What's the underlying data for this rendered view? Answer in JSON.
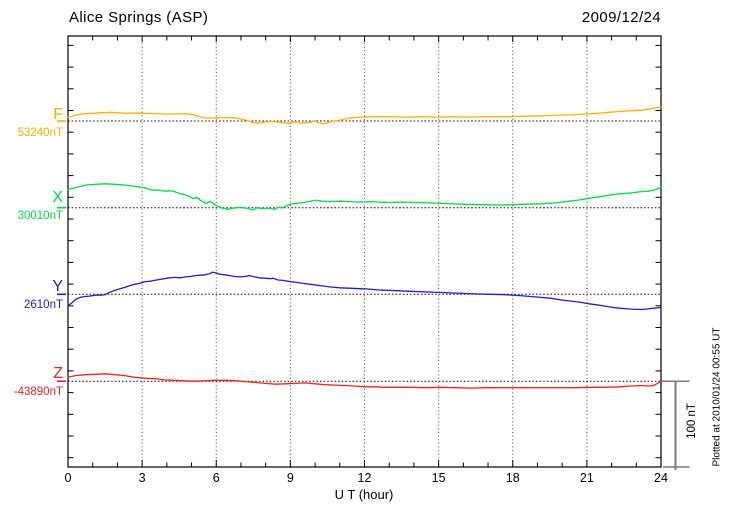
{
  "header": {
    "title": "Alice Springs (ASP)",
    "date": "2009/12/24"
  },
  "footer": {
    "xlabel": "U T (hour)"
  },
  "side": {
    "scale_label": "100 nT",
    "plotted_at": "Plotted at 2010/01/24 00:55 UT"
  },
  "channels": [
    {
      "id": "F",
      "label": "F",
      "value_label": "53240nT",
      "base_value": 53240,
      "color": "#ffaf00"
    },
    {
      "id": "X",
      "label": "X",
      "value_label": "30010nT",
      "base_value": 30010,
      "color": "#00dd44"
    },
    {
      "id": "Y",
      "label": "Y",
      "value_label": "2610nT",
      "base_value": 2610,
      "color": "#2020cc"
    },
    {
      "id": "Z",
      "label": "Z",
      "value_label": "-43890nT",
      "base_value": -43890,
      "color": "#ee2222"
    }
  ],
  "chart_data": {
    "type": "line",
    "station": "Alice Springs (ASP)",
    "date": "2009/12/24",
    "xlabel": "U T (hour)",
    "xlim": [
      0,
      24
    ],
    "x_ticks": [
      0,
      3,
      6,
      9,
      12,
      15,
      18,
      21,
      24
    ],
    "x_minor_step_hours": 1,
    "grid": "dotted vertical lines every 3 hours; dotted horizontal baseline per channel",
    "units": "nT",
    "values_are": "offset_nT_from_channel_baseline",
    "scale_bar": {
      "label": "100 nT",
      "nT": 100
    },
    "series": [
      {
        "name": "F",
        "baseline_nT": 53240,
        "color": "#ffaf00",
        "points": [
          [
            0,
            4.5
          ],
          [
            0.5,
            8
          ],
          [
            1.1,
            9
          ],
          [
            1.7,
            10
          ],
          [
            2.3,
            9
          ],
          [
            2.9,
            9
          ],
          [
            3.5,
            8.5
          ],
          [
            4.1,
            8
          ],
          [
            4.7,
            8.5
          ],
          [
            5.1,
            7
          ],
          [
            5.5,
            3.5
          ],
          [
            6,
            3.5
          ],
          [
            6.4,
            4
          ],
          [
            6.8,
            3.5
          ],
          [
            7.2,
            1
          ],
          [
            7.45,
            -1.5
          ],
          [
            7.7,
            -2.5
          ],
          [
            8,
            -1
          ],
          [
            8.25,
            -0.5
          ],
          [
            8.6,
            -1.5
          ],
          [
            9,
            -3
          ],
          [
            9.2,
            -1
          ],
          [
            9.4,
            -2.5
          ],
          [
            9.8,
            -1.5
          ],
          [
            10,
            0
          ],
          [
            10.2,
            -2.5
          ],
          [
            10.4,
            -3
          ],
          [
            10.6,
            -1
          ],
          [
            11,
            1
          ],
          [
            11.4,
            3.5
          ],
          [
            11.8,
            4.5
          ],
          [
            12.4,
            5
          ],
          [
            13,
            5
          ],
          [
            13.6,
            4.5
          ],
          [
            14.3,
            5
          ],
          [
            14.9,
            4.5
          ],
          [
            15.5,
            5
          ],
          [
            16.1,
            4.5
          ],
          [
            16.7,
            5
          ],
          [
            17.3,
            5
          ],
          [
            17.9,
            5
          ],
          [
            18.5,
            5.5
          ],
          [
            19.1,
            6
          ],
          [
            19.7,
            6.5
          ],
          [
            20.3,
            7
          ],
          [
            20.9,
            8
          ],
          [
            21.5,
            9
          ],
          [
            22.1,
            10.5
          ],
          [
            22.8,
            12
          ],
          [
            23.2,
            12.5
          ],
          [
            23.6,
            14
          ],
          [
            23.85,
            15.5
          ],
          [
            24,
            16
          ]
        ]
      },
      {
        "name": "X",
        "baseline_nT": 30010,
        "color": "#00dd44",
        "points": [
          [
            0,
            21
          ],
          [
            0.3,
            23
          ],
          [
            0.7,
            26
          ],
          [
            1.1,
            27
          ],
          [
            1.5,
            27.5
          ],
          [
            1.9,
            27
          ],
          [
            2.3,
            26
          ],
          [
            2.7,
            24.5
          ],
          [
            3.1,
            23
          ],
          [
            3.4,
            20
          ],
          [
            3.65,
            20.5
          ],
          [
            3.9,
            19
          ],
          [
            4.2,
            19.5
          ],
          [
            4.55,
            16
          ],
          [
            4.85,
            14
          ],
          [
            5.05,
            10.5
          ],
          [
            5.2,
            12
          ],
          [
            5.4,
            8
          ],
          [
            5.6,
            5
          ],
          [
            5.75,
            7.5
          ],
          [
            5.95,
            3.5
          ],
          [
            6.1,
            1
          ],
          [
            6.25,
            -0.5
          ],
          [
            6.45,
            -2
          ],
          [
            6.7,
            -0.5
          ],
          [
            6.95,
            0.5
          ],
          [
            7.2,
            -0.5
          ],
          [
            7.5,
            -2.5
          ],
          [
            7.65,
            0
          ],
          [
            7.85,
            -1
          ],
          [
            8.1,
            -0.5
          ],
          [
            8.35,
            -2
          ],
          [
            8.5,
            0.5
          ],
          [
            8.7,
            0
          ],
          [
            8.9,
            3
          ],
          [
            9.1,
            4.5
          ],
          [
            9.4,
            5.5
          ],
          [
            9.65,
            6.5
          ],
          [
            10,
            8.5
          ],
          [
            10.3,
            7.5
          ],
          [
            10.6,
            7
          ],
          [
            11,
            7.5
          ],
          [
            11.4,
            7
          ],
          [
            11.8,
            6.5
          ],
          [
            12.2,
            7
          ],
          [
            12.6,
            6.5
          ],
          [
            13,
            6
          ],
          [
            13.4,
            6.5
          ],
          [
            14.3,
            6
          ],
          [
            15.1,
            5
          ],
          [
            15.9,
            4
          ],
          [
            16.7,
            3.5
          ],
          [
            17.5,
            3
          ],
          [
            18,
            3.5
          ],
          [
            18.5,
            4
          ],
          [
            19.1,
            4.5
          ],
          [
            19.7,
            5.5
          ],
          [
            20.3,
            7.5
          ],
          [
            20.7,
            9
          ],
          [
            21.1,
            11
          ],
          [
            21.5,
            12.5
          ],
          [
            21.9,
            14.5
          ],
          [
            22.3,
            16
          ],
          [
            22.8,
            17
          ],
          [
            23.2,
            18.5
          ],
          [
            23.6,
            19.5
          ],
          [
            23.8,
            21
          ],
          [
            24,
            24
          ]
        ]
      },
      {
        "name": "Y",
        "baseline_nT": 2610,
        "color": "#2020cc",
        "points": [
          [
            0,
            -13
          ],
          [
            0.15,
            -10
          ],
          [
            0.3,
            -6
          ],
          [
            0.5,
            -3.5
          ],
          [
            0.7,
            -2.5
          ],
          [
            0.9,
            -2
          ],
          [
            1.1,
            -1
          ],
          [
            1.3,
            -1
          ],
          [
            1.5,
            -0.5
          ],
          [
            1.7,
            2.5
          ],
          [
            1.9,
            4.5
          ],
          [
            2.1,
            6.5
          ],
          [
            2.3,
            8
          ],
          [
            2.5,
            10
          ],
          [
            2.7,
            11.5
          ],
          [
            2.9,
            12.5
          ],
          [
            3.1,
            14.5
          ],
          [
            3.3,
            15
          ],
          [
            3.5,
            16
          ],
          [
            3.7,
            17
          ],
          [
            3.9,
            18
          ],
          [
            4.1,
            19
          ],
          [
            4.3,
            19.5
          ],
          [
            4.55,
            19
          ],
          [
            4.75,
            20
          ],
          [
            4.95,
            20.5
          ],
          [
            5.15,
            21.5
          ],
          [
            5.35,
            22
          ],
          [
            5.55,
            22.5
          ],
          [
            5.75,
            24
          ],
          [
            5.85,
            25.5
          ],
          [
            6,
            24.5
          ],
          [
            6.15,
            23
          ],
          [
            6.35,
            22.5
          ],
          [
            6.55,
            21.5
          ],
          [
            6.75,
            20.5
          ],
          [
            6.95,
            20
          ],
          [
            7.15,
            20.5
          ],
          [
            7.35,
            21.5
          ],
          [
            7.55,
            20
          ],
          [
            7.75,
            19
          ],
          [
            7.95,
            18.5
          ],
          [
            8.2,
            18
          ],
          [
            8.3,
            18.5
          ],
          [
            8.5,
            16.5
          ],
          [
            8.7,
            16
          ],
          [
            9,
            14.5
          ],
          [
            9.2,
            14
          ],
          [
            9.4,
            13
          ],
          [
            9.8,
            11.5
          ],
          [
            10.2,
            10
          ],
          [
            10.6,
            8.5
          ],
          [
            11,
            7.5
          ],
          [
            11.4,
            7
          ],
          [
            11.8,
            6.5
          ],
          [
            12.2,
            6
          ],
          [
            12.6,
            5
          ],
          [
            13,
            4.5
          ],
          [
            13.4,
            4
          ],
          [
            13.8,
            3.5
          ],
          [
            14.3,
            3
          ],
          [
            14.7,
            2.5
          ],
          [
            15.3,
            2
          ],
          [
            15.9,
            1
          ],
          [
            16.5,
            0.5
          ],
          [
            17.1,
            0
          ],
          [
            17.7,
            -0.5
          ],
          [
            18.3,
            -1.5
          ],
          [
            18.9,
            -3
          ],
          [
            19.5,
            -4.5
          ],
          [
            20.1,
            -7
          ],
          [
            20.7,
            -9
          ],
          [
            21.1,
            -11
          ],
          [
            21.5,
            -12.5
          ],
          [
            21.9,
            -14.5
          ],
          [
            22.3,
            -16
          ],
          [
            22.8,
            -17
          ],
          [
            23.2,
            -17.5
          ],
          [
            23.4,
            -17
          ],
          [
            23.7,
            -16
          ],
          [
            23.9,
            -15.5
          ],
          [
            24,
            -15
          ]
        ]
      },
      {
        "name": "Z",
        "baseline_nT": -43890,
        "color": "#ee2222",
        "points": [
          [
            0,
            4.5
          ],
          [
            0.3,
            6.5
          ],
          [
            0.7,
            7.5
          ],
          [
            1.1,
            8
          ],
          [
            1.5,
            8.5
          ],
          [
            1.9,
            7.5
          ],
          [
            2.3,
            6.5
          ],
          [
            2.7,
            4.5
          ],
          [
            3.1,
            3.5
          ],
          [
            3.5,
            3
          ],
          [
            3.9,
            1.5
          ],
          [
            4.3,
            1
          ],
          [
            4.7,
            0.5
          ],
          [
            5.1,
            0
          ],
          [
            5.5,
            0.5
          ],
          [
            5.9,
            1
          ],
          [
            6.4,
            1
          ],
          [
            6.8,
            0.5
          ],
          [
            7.2,
            -0.5
          ],
          [
            7.6,
            -1.5
          ],
          [
            8,
            -2.5
          ],
          [
            8.4,
            -3.5
          ],
          [
            8.8,
            -3
          ],
          [
            9.2,
            -2.5
          ],
          [
            9.6,
            -2
          ],
          [
            10,
            -3
          ],
          [
            10.4,
            -4
          ],
          [
            10.8,
            -4.5
          ],
          [
            11.2,
            -5
          ],
          [
            11.6,
            -5.5
          ],
          [
            12,
            -6.5
          ],
          [
            12.4,
            -6.5
          ],
          [
            12.8,
            -7
          ],
          [
            13.2,
            -7
          ],
          [
            13.8,
            -7
          ],
          [
            14.5,
            -7.5
          ],
          [
            15.1,
            -7
          ],
          [
            15.7,
            -7.5
          ],
          [
            16.3,
            -8
          ],
          [
            16.9,
            -7.5
          ],
          [
            17.5,
            -7.5
          ],
          [
            18.1,
            -7.5
          ],
          [
            18.7,
            -7.5
          ],
          [
            19.3,
            -7.5
          ],
          [
            19.9,
            -7.5
          ],
          [
            20.5,
            -7.5
          ],
          [
            21.1,
            -7
          ],
          [
            21.7,
            -7
          ],
          [
            22.3,
            -6.5
          ],
          [
            22.8,
            -5.5
          ],
          [
            23.2,
            -5
          ],
          [
            23.5,
            -5.5
          ],
          [
            23.7,
            -5
          ],
          [
            23.85,
            -2.5
          ],
          [
            24,
            -0.5
          ]
        ]
      }
    ]
  }
}
